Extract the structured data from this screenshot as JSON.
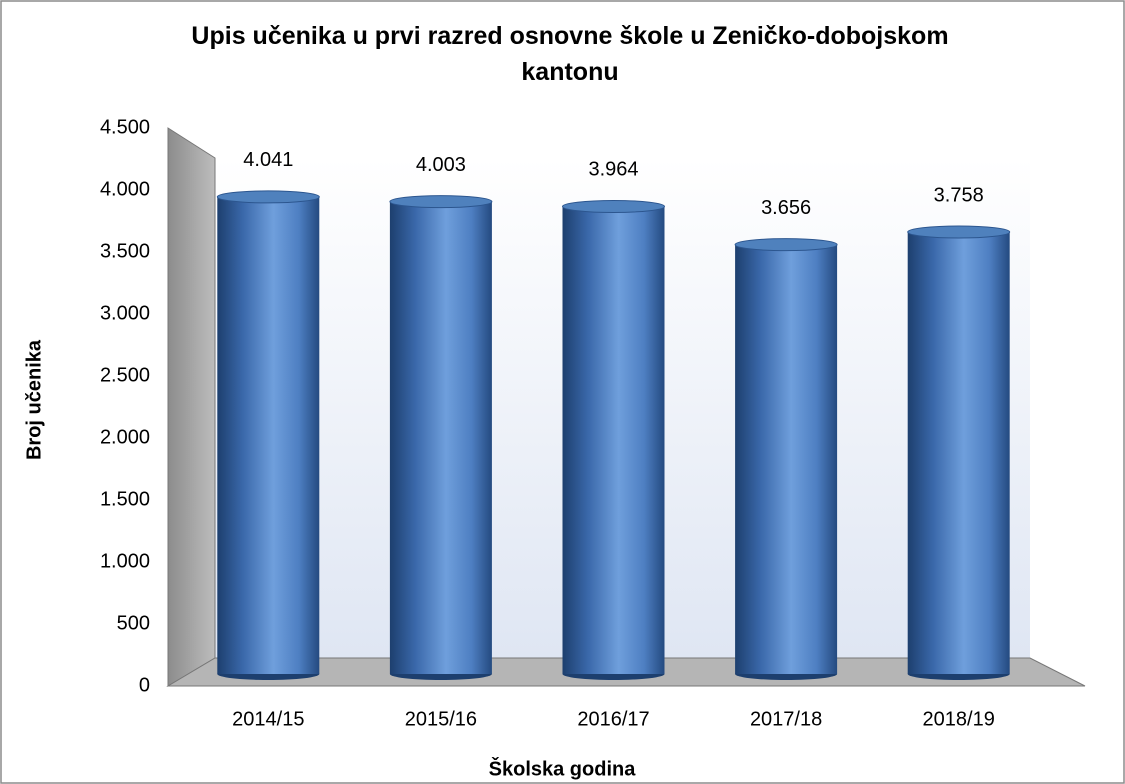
{
  "chart_data": {
    "type": "bar",
    "title": "Upis učenika u prvi razred osnovne škole u Zeničko-dobojskom kantonu",
    "xlabel": "Školska godina",
    "ylabel": "Broj učenika",
    "categories": [
      "2014/15",
      "2015/16",
      "2016/17",
      "2017/18",
      "2018/19"
    ],
    "values": [
      4041,
      4003,
      3964,
      3656,
      3758
    ],
    "value_labels": [
      "4.041",
      "4.003",
      "3.964",
      "3.656",
      "3.758"
    ],
    "color": "#4f81bd",
    "ylim": [
      0,
      4500
    ],
    "yticks": [
      0,
      500,
      {
        "value": 1000,
        "label": "1.000"
      },
      {
        "value": 1500,
        "label": "1.500"
      },
      {
        "value": 2000,
        "label": "2.000"
      },
      {
        "value": 2500,
        "label": "2.500"
      },
      {
        "value": 3000,
        "label": "3.000"
      },
      {
        "value": 3500,
        "label": "3.500"
      },
      {
        "value": 4000,
        "label": "4.000"
      },
      {
        "value": 4500,
        "label": "4.500"
      }
    ],
    "grid": false
  }
}
